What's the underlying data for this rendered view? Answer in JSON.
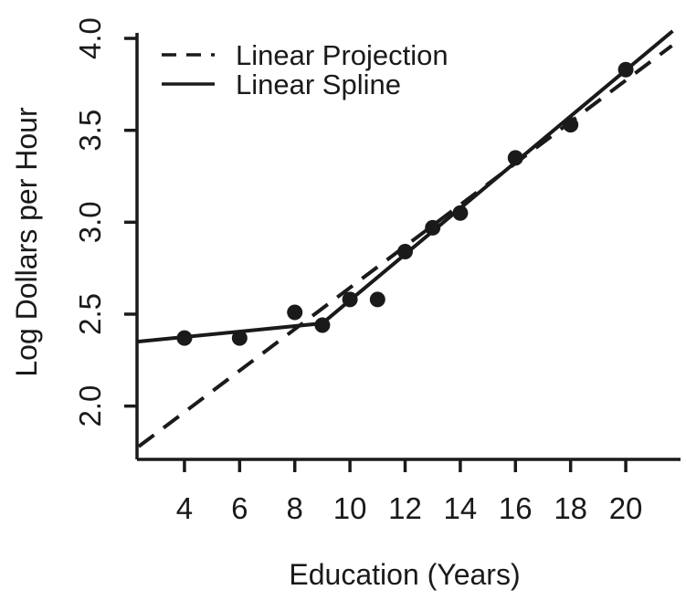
{
  "figure": {
    "background": "#ffffff",
    "foreground": "#1a1a1a"
  },
  "chart_data": {
    "type": "scatter",
    "title": "",
    "xlabel": "Education (Years)",
    "ylabel": "Log Dollars per Hour",
    "xlim": [
      2.28,
      21.72
    ],
    "ylim": [
      1.71,
      4.02
    ],
    "x_ticks": [
      "4",
      "6",
      "8",
      "10",
      "12",
      "14",
      "16",
      "18",
      "20"
    ],
    "x_tick_values": [
      4,
      6,
      8,
      10,
      12,
      14,
      16,
      18,
      20
    ],
    "y_ticks": [
      "2.0",
      "2.5",
      "3.0",
      "3.5",
      "4.0"
    ],
    "y_tick_values": [
      2.0,
      2.5,
      3.0,
      3.5,
      4.0
    ],
    "grid": false,
    "legend_position": "top-left",
    "points": {
      "x": [
        4,
        6,
        8,
        9,
        10,
        11,
        12,
        13,
        14,
        16,
        18,
        20
      ],
      "y": [
        2.37,
        2.37,
        2.51,
        2.44,
        2.58,
        2.58,
        2.84,
        2.97,
        3.05,
        3.35,
        3.53,
        3.83
      ]
    },
    "series": [
      {
        "name": "Linear Projection",
        "style": "dashed",
        "x": [
          2.34,
          21.67
        ],
        "y": [
          1.78,
          3.96
        ]
      },
      {
        "name": "Linear Spline",
        "style": "solid",
        "x": [
          2.28,
          9.0,
          21.7
        ],
        "y": [
          2.35,
          2.45,
          4.04
        ]
      }
    ]
  },
  "legend": {
    "items": [
      {
        "label": "Linear Projection",
        "style": "dashed"
      },
      {
        "label": "Linear Spline",
        "style": "solid"
      }
    ]
  }
}
